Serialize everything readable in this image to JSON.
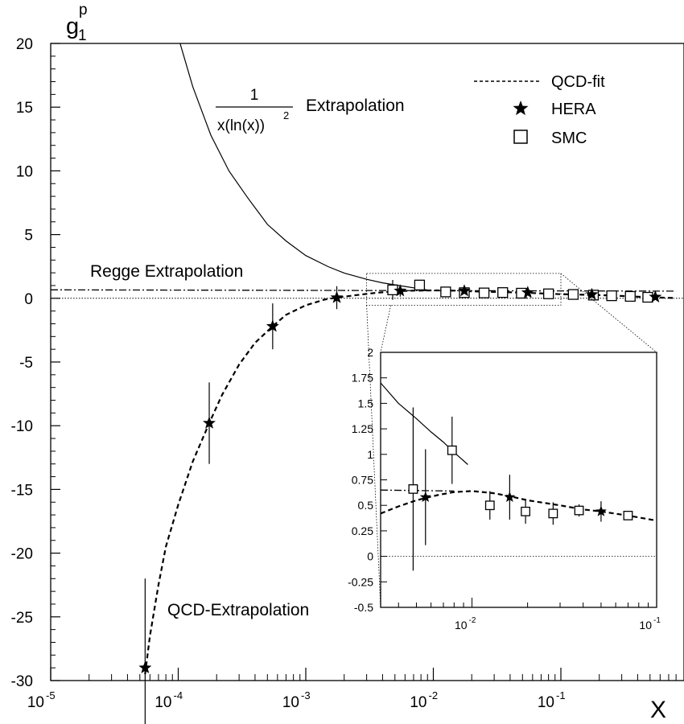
{
  "chart_data": [
    {
      "type": "scatter",
      "xscale": "log",
      "xlim": [
        1e-05,
        0.8
      ],
      "ylim": [
        -30,
        20
      ],
      "yticks": [
        20,
        15,
        10,
        5,
        0,
        -5,
        -10,
        -15,
        -20,
        -25,
        -30
      ],
      "xtick_base": "10",
      "xtick_exponents": [
        "-5",
        "-4",
        "-3",
        "-2",
        "-1"
      ],
      "ylabel": {
        "main": "g",
        "sup": "p",
        "sub": "1"
      },
      "xlabel": "X",
      "legend": {
        "placement": "top-right",
        "entries": [
          {
            "label": "QCD-fit",
            "marker": "dashed-line"
          },
          {
            "label": "HERA",
            "marker": "star"
          },
          {
            "label": "SMC",
            "marker": "open-square"
          }
        ]
      },
      "annotations": {
        "extrapolation_numerator": "1",
        "extrapolation_denominator_base": "x(ln(x))",
        "extrapolation_denominator_exp": "2",
        "extrapolation_word": "Extrapolation",
        "regge": "Regge Extrapolation",
        "qcd": "QCD-Extrapolation"
      },
      "series": [
        {
          "name": "HERA",
          "marker": "star",
          "points": [
            {
              "x": 5.5e-05,
              "y": -29.0,
              "err": 7.0
            },
            {
              "x": 0.000175,
              "y": -9.8,
              "err": 3.2
            },
            {
              "x": 0.00055,
              "y": -2.2,
              "err": 1.8
            },
            {
              "x": 0.00175,
              "y": 0.05,
              "err": 0.9
            },
            {
              "x": 0.0055,
              "y": 0.58,
              "err": 0.45
            },
            {
              "x": 0.0175,
              "y": 0.58,
              "err": 0.22
            },
            {
              "x": 0.055,
              "y": 0.45,
              "err": 0.1
            },
            {
              "x": 0.175,
              "y": 0.3,
              "err": 0.05
            },
            {
              "x": 0.55,
              "y": 0.1,
              "err": 0.03
            }
          ]
        },
        {
          "name": "SMC",
          "marker": "open-square",
          "points": [
            {
              "x": 0.0048,
              "y": 0.66,
              "err": 0.78
            },
            {
              "x": 0.0078,
              "y": 1.04,
              "err": 0.32
            },
            {
              "x": 0.0125,
              "y": 0.5,
              "err": 0.14
            },
            {
              "x": 0.0175,
              "y": 0.44,
              "err": 0.11
            },
            {
              "x": 0.025,
              "y": 0.42,
              "err": 0.1
            },
            {
              "x": 0.035,
              "y": 0.45,
              "err": 0.06
            },
            {
              "x": 0.049,
              "y": 0.4,
              "err": 0.04
            },
            {
              "x": 0.08,
              "y": 0.35,
              "err": 0.03
            },
            {
              "x": 0.125,
              "y": 0.3,
              "err": 0.02
            },
            {
              "x": 0.18,
              "y": 0.25,
              "err": 0.02
            },
            {
              "x": 0.25,
              "y": 0.2,
              "err": 0.02
            },
            {
              "x": 0.35,
              "y": 0.15,
              "err": 0.01
            },
            {
              "x": 0.48,
              "y": 0.08,
              "err": 0.01
            }
          ]
        }
      ],
      "curves": [
        {
          "kind": "qcd-fit",
          "style": "dashed",
          "points": [
            [
              5.5e-05,
              -29.5
            ],
            [
              6e-05,
              -26.5
            ],
            [
              7e-05,
              -22.5
            ],
            [
              8e-05,
              -19.5
            ],
            [
              0.0001,
              -16.2
            ],
            [
              0.00013,
              -12.8
            ],
            [
              0.000175,
              -9.8
            ],
            [
              0.00022,
              -7.6
            ],
            [
              0.0003,
              -5.2
            ],
            [
              0.0004,
              -3.5
            ],
            [
              0.00055,
              -2.2
            ],
            [
              0.0007,
              -1.3
            ],
            [
              0.001,
              -0.55
            ],
            [
              0.0014,
              -0.1
            ],
            [
              0.00175,
              0.05
            ],
            [
              0.0025,
              0.25
            ],
            [
              0.0035,
              0.42
            ],
            [
              0.005,
              0.55
            ],
            [
              0.007,
              0.6
            ],
            [
              0.01,
              0.62
            ],
            [
              0.015,
              0.6
            ],
            [
              0.02,
              0.55
            ],
            [
              0.03,
              0.5
            ],
            [
              0.05,
              0.45
            ],
            [
              0.075,
              0.37
            ],
            [
              0.1,
              0.32
            ],
            [
              0.2,
              0.25
            ],
            [
              0.3,
              0.18
            ],
            [
              0.5,
              0.08
            ],
            [
              0.8,
              0.02
            ]
          ]
        },
        {
          "kind": "1/(x(ln x)^2)",
          "style": "solid",
          "points": [
            [
              0.0001,
              20.5
            ],
            [
              0.00013,
              16.6
            ],
            [
              0.00018,
              12.8
            ],
            [
              0.00025,
              9.99
            ],
            [
              0.00035,
              7.9
            ],
            [
              0.0005,
              5.8
            ],
            [
              0.0007,
              4.5
            ],
            [
              0.001,
              3.35
            ],
            [
              0.0015,
              2.48
            ],
            [
              0.002,
              1.98
            ],
            [
              0.003,
              1.49
            ],
            [
              0.004,
              1.21
            ],
            [
              0.006,
              0.93
            ],
            [
              0.008,
              0.73
            ],
            [
              0.0095,
              0.61
            ]
          ]
        },
        {
          "kind": "regge",
          "style": "dashdot",
          "points": [
            [
              1e-05,
              0.66
            ],
            [
              0.8,
              0.56
            ]
          ]
        }
      ]
    },
    {
      "type": "scatter",
      "inset": true,
      "xscale": "log",
      "xlim": [
        0.0032,
        0.1
      ],
      "ylim": [
        -0.5,
        2.0
      ],
      "ytick_labels": [
        "2",
        "1.75",
        "1.5",
        "1.25",
        "1",
        "0.75",
        "0.5",
        "0.25",
        "0",
        "-0.25",
        "-0.5"
      ],
      "xtick_base": "10",
      "xtick_exponents": [
        "-2",
        "-1"
      ],
      "series": [
        {
          "name": "SMC",
          "marker": "open-square",
          "points": [
            {
              "x": 0.0048,
              "y": 0.66,
              "err": 0.8
            },
            {
              "x": 0.0078,
              "y": 1.04,
              "err": 0.33
            },
            {
              "x": 0.0125,
              "y": 0.5,
              "err": 0.14
            },
            {
              "x": 0.0195,
              "y": 0.44,
              "err": 0.12
            },
            {
              "x": 0.0275,
              "y": 0.42,
              "err": 0.11
            },
            {
              "x": 0.038,
              "y": 0.45,
              "err": 0.06
            },
            {
              "x": 0.07,
              "y": 0.4,
              "err": 0.04
            }
          ]
        },
        {
          "name": "HERA",
          "marker": "star",
          "points": [
            {
              "x": 0.0056,
              "y": 0.58,
              "err": 0.47
            },
            {
              "x": 0.016,
              "y": 0.58,
              "err": 0.22
            },
            {
              "x": 0.05,
              "y": 0.44,
              "err": 0.1
            }
          ]
        }
      ],
      "curves": [
        {
          "kind": "qcd-fit",
          "style": "dashed",
          "points": [
            [
              0.0032,
              0.42
            ],
            [
              0.004,
              0.49
            ],
            [
              0.005,
              0.55
            ],
            [
              0.0065,
              0.6
            ],
            [
              0.008,
              0.63
            ],
            [
              0.01,
              0.64
            ],
            [
              0.013,
              0.62
            ],
            [
              0.016,
              0.59
            ],
            [
              0.02,
              0.55
            ],
            [
              0.03,
              0.5
            ],
            [
              0.04,
              0.46
            ],
            [
              0.05,
              0.44
            ],
            [
              0.07,
              0.4
            ],
            [
              0.1,
              0.35
            ]
          ]
        },
        {
          "kind": "1/(x(ln x)^2)",
          "style": "solid",
          "points": [
            [
              0.0032,
              1.7
            ],
            [
              0.004,
              1.5
            ],
            [
              0.005,
              1.35
            ],
            [
              0.006,
              1.22
            ],
            [
              0.007,
              1.12
            ],
            [
              0.008,
              1.02
            ],
            [
              0.0095,
              0.9
            ]
          ]
        },
        {
          "kind": "regge",
          "style": "dashdot",
          "points": [
            [
              0.0032,
              0.65
            ],
            [
              0.008,
              0.64
            ]
          ]
        }
      ]
    }
  ]
}
